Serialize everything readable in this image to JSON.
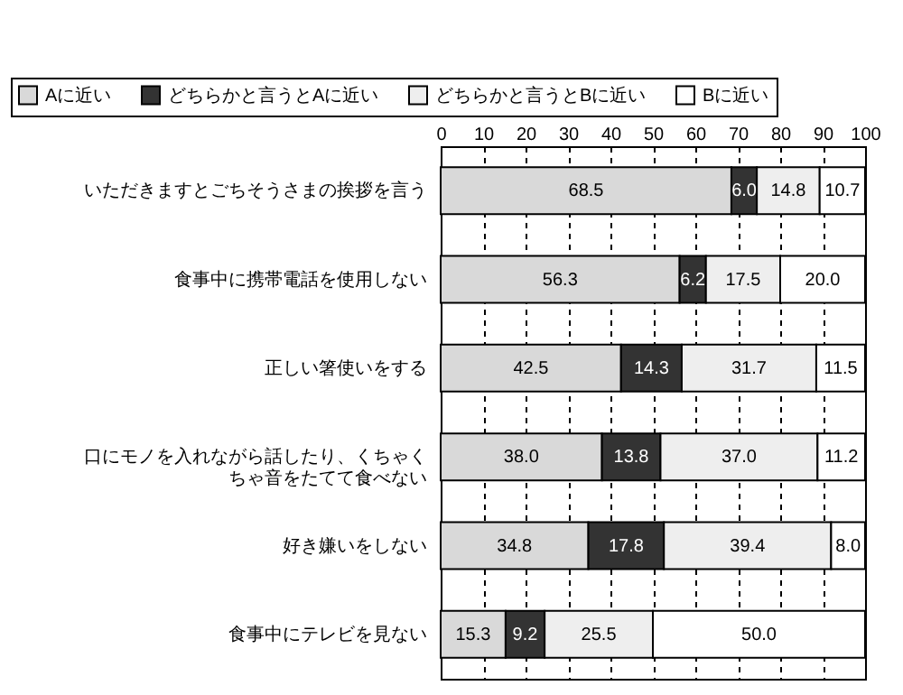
{
  "chart_data": {
    "type": "bar",
    "orientation": "horizontal",
    "stacked": true,
    "categories": [
      "いただきますとごちそうさまの挨拶を言う",
      "食事中に携帯電話を使用しない",
      "正しい箸使いをする",
      "口にモノを入れながら話したり、くちゃくちゃ音をたてて食べない",
      "好き嫌いをしない",
      "食事中にテレビを見ない"
    ],
    "series": [
      {
        "name": "Aに近い",
        "color": "#d9d9d9",
        "values": [
          68.5,
          56.3,
          42.5,
          38.0,
          34.8,
          15.3
        ],
        "value_labels": [
          "68.5",
          "56.3",
          "42.5",
          "38.0",
          "34.8",
          "15.3"
        ]
      },
      {
        "name": "どちらかと言うとAに近い",
        "color": "#333333",
        "values": [
          6.0,
          6.2,
          14.3,
          13.8,
          17.8,
          9.2
        ],
        "value_labels": [
          "6.0",
          "6.2",
          "14.3",
          "13.8",
          "17.8",
          "9.2"
        ]
      },
      {
        "name": "どちらかと言うとBに近い",
        "color": "#eeeeee",
        "values": [
          14.8,
          17.5,
          31.7,
          37.0,
          39.4,
          25.5
        ],
        "value_labels": [
          "14.8",
          "17.5",
          "31.7",
          "37.0",
          "39.4",
          "25.5"
        ]
      },
      {
        "name": "Bに近い",
        "color": "#ffffff",
        "values": [
          10.7,
          20.0,
          11.5,
          11.2,
          8.0,
          50.0
        ],
        "value_labels": [
          "10.7",
          "20.0",
          "11.5",
          "11.2",
          "8.0",
          "50.0"
        ]
      }
    ],
    "xlim": [
      0,
      100
    ],
    "xticks": [
      0,
      10,
      20,
      30,
      40,
      50,
      60,
      70,
      80,
      90,
      100
    ],
    "grid": "x",
    "legend": "top",
    "data_labels": true
  }
}
